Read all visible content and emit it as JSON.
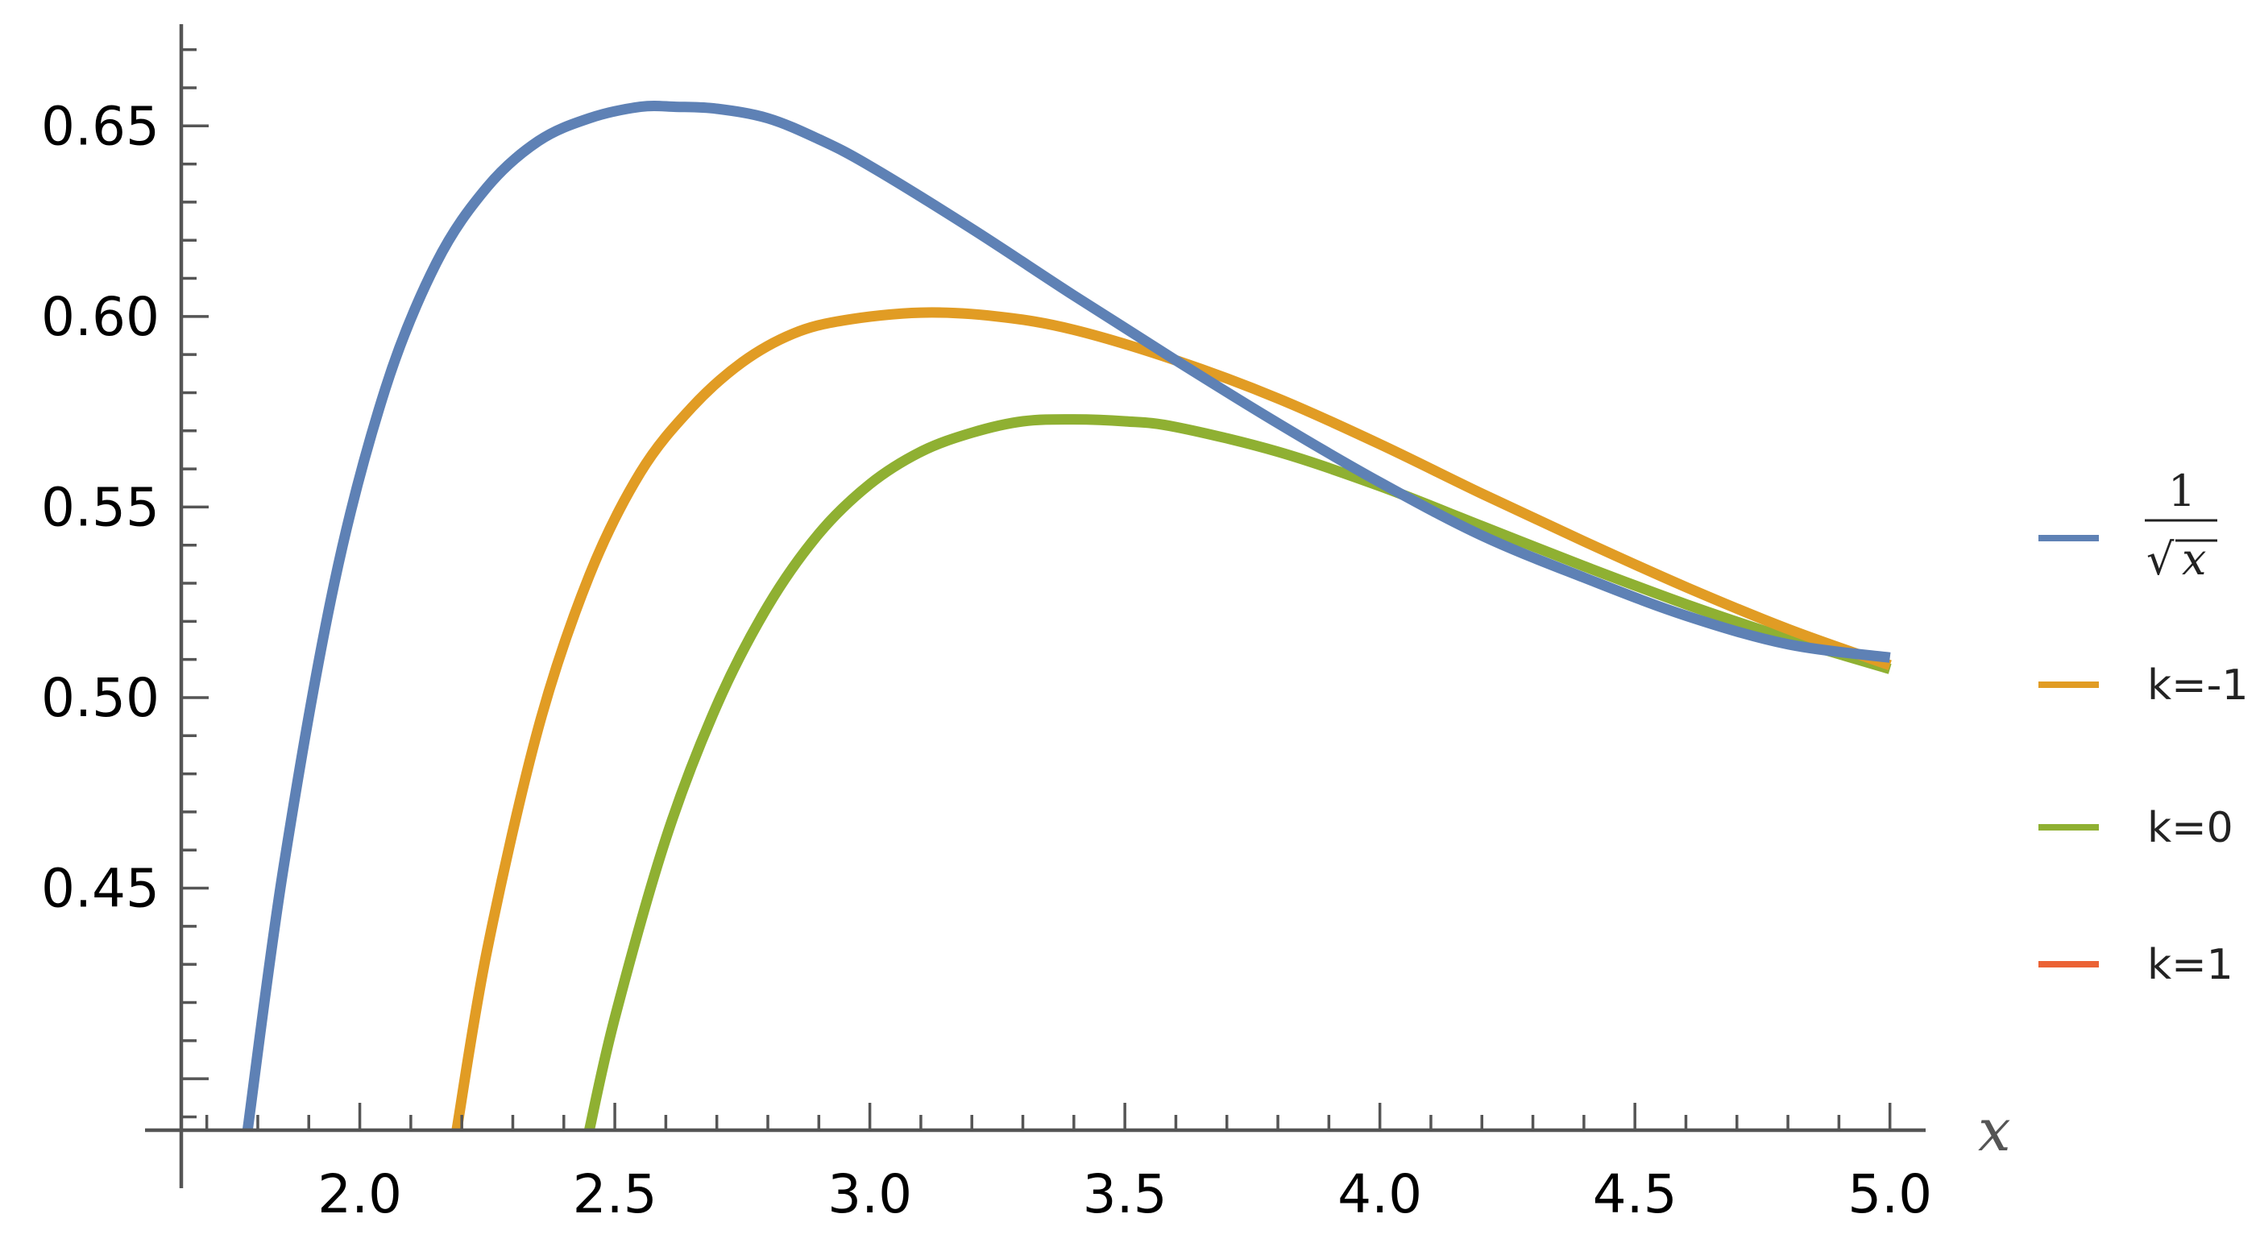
{
  "chart_data": {
    "type": "line",
    "xlabel": "x",
    "ylabel": "",
    "xlim": [
      1.65,
      5.07
    ],
    "ylim": [
      0.3865,
      0.675
    ],
    "x_axis_crosses_y_at": 0.3865,
    "y_axis_crosses_x_at": 1.65,
    "x_ticks": [
      2.0,
      2.5,
      3.0,
      3.5,
      4.0,
      4.5,
      5.0
    ],
    "x_tick_labels": [
      "2.0",
      "2.5",
      "3.0",
      "3.5",
      "4.0",
      "4.5",
      "5.0"
    ],
    "y_ticks": [
      0.45,
      0.5,
      0.55,
      0.6,
      0.65
    ],
    "y_tick_labels": [
      "0.45",
      "0.50",
      "0.55",
      "0.60",
      "0.65"
    ],
    "grid": false,
    "legend_position": "right",
    "series": [
      {
        "name": "1/√x",
        "color": "#5e81b5",
        "x": [
          1.78,
          1.85,
          1.95,
          2.05,
          2.15,
          2.25,
          2.35,
          2.45,
          2.55,
          2.62,
          2.7,
          2.8,
          2.9,
          3.0,
          3.2,
          3.4,
          3.6,
          3.8,
          4.0,
          4.2,
          4.4,
          4.6,
          4.8,
          5.0
        ],
        "y": [
          0.3865,
          0.455,
          0.53,
          0.581,
          0.614,
          0.634,
          0.646,
          0.652,
          0.655,
          0.655,
          0.6545,
          0.652,
          0.6465,
          0.6395,
          0.623,
          0.6055,
          0.5885,
          0.572,
          0.5565,
          0.5425,
          0.5315,
          0.5215,
          0.514,
          0.5105
        ]
      },
      {
        "name": "k=-1",
        "color": "#e19c24",
        "x": [
          2.19,
          2.25,
          2.35,
          2.45,
          2.55,
          2.65,
          2.75,
          2.85,
          2.95,
          3.1,
          3.25,
          3.4,
          3.6,
          3.8,
          4.0,
          4.2,
          4.4,
          4.6,
          4.8,
          5.0
        ],
        "y": [
          0.3865,
          0.434,
          0.492,
          0.532,
          0.559,
          0.576,
          0.588,
          0.5955,
          0.599,
          0.601,
          0.6,
          0.5965,
          0.5885,
          0.5785,
          0.5665,
          0.5535,
          0.541,
          0.529,
          0.518,
          0.5085
        ]
      },
      {
        "name": "k=0",
        "color": "#8fb032",
        "x": [
          2.45,
          2.5,
          2.6,
          2.7,
          2.8,
          2.9,
          3.0,
          3.1,
          3.2,
          3.3,
          3.4,
          3.5,
          3.6,
          3.8,
          4.0,
          4.2,
          4.4,
          4.6,
          4.8,
          5.0
        ],
        "y": [
          0.3865,
          0.416,
          0.463,
          0.498,
          0.524,
          0.543,
          0.556,
          0.5645,
          0.5695,
          0.5725,
          0.573,
          0.5725,
          0.571,
          0.5645,
          0.5555,
          0.545,
          0.5345,
          0.5245,
          0.5155,
          0.5075
        ]
      },
      {
        "name": "k=1",
        "color": "#eb6235",
        "x": [],
        "y": []
      }
    ]
  }
}
